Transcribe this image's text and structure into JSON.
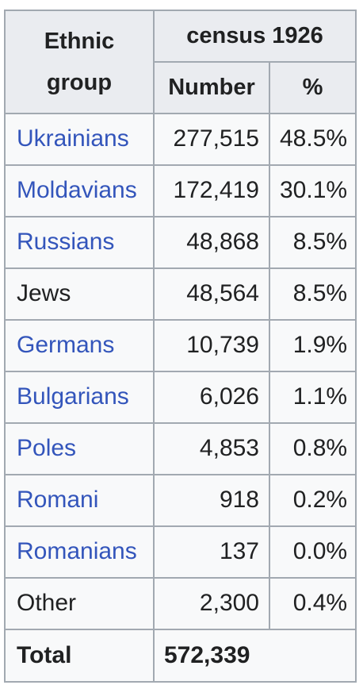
{
  "table": {
    "header": {
      "group_label": "Ethnic group",
      "census_label": "census 1926",
      "number_label": "Number",
      "pct_label": "%"
    },
    "rows": [
      {
        "group": "Ukrainians",
        "number": "277,515",
        "pct": "48.5%",
        "link": true
      },
      {
        "group": "Moldavians",
        "number": "172,419",
        "pct": "30.1%",
        "link": true
      },
      {
        "group": "Russians",
        "number": "48,868",
        "pct": "8.5%",
        "link": true
      },
      {
        "group": "Jews",
        "number": "48,564",
        "pct": "8.5%",
        "link": false
      },
      {
        "group": "Germans",
        "number": "10,739",
        "pct": "1.9%",
        "link": true
      },
      {
        "group": "Bulgarians",
        "number": "6,026",
        "pct": "1.1%",
        "link": true
      },
      {
        "group": "Poles",
        "number": "4,853",
        "pct": "0.8%",
        "link": true
      },
      {
        "group": "Romani",
        "number": "918",
        "pct": "0.2%",
        "link": true
      },
      {
        "group": "Romanians",
        "number": "137",
        "pct": "0.0%",
        "link": true
      },
      {
        "group": "Other",
        "number": "2,300",
        "pct": "0.4%",
        "link": false
      }
    ],
    "total": {
      "label": "Total",
      "number": "572,339"
    }
  },
  "colors": {
    "link": "#3355bb",
    "text": "#202122",
    "header_bg": "#eaecf0",
    "cell_bg": "#f8f9fa",
    "border": "#a2a9b1"
  }
}
